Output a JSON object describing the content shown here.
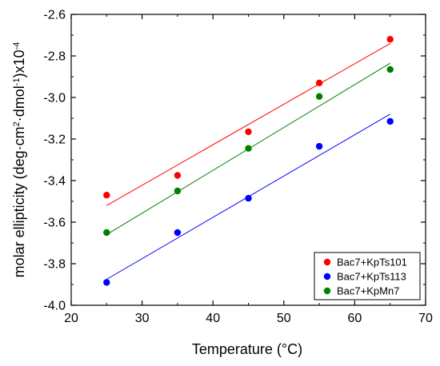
{
  "chart_data": {
    "type": "scatter",
    "xlabel": "Temperature (°C)",
    "ylabel": {
      "main": "molar ellipticity (deg·cm",
      "sup1": "2",
      "mid1": "·dmol",
      "sup2": "-1",
      "mid2": ")x10",
      "sup3": "-4"
    },
    "xlim": [
      20,
      70
    ],
    "ylim": [
      -4.0,
      -2.6
    ],
    "xticks": [
      20,
      30,
      40,
      50,
      60,
      70
    ],
    "yticks": [
      -4.0,
      -3.8,
      -3.6,
      -3.4,
      -3.2,
      -3.0,
      -2.8,
      -2.6
    ],
    "xtick_labels": [
      "20",
      "30",
      "40",
      "50",
      "60",
      "70"
    ],
    "ytick_labels": [
      "-4.0",
      "-3.8",
      "-3.6",
      "-3.4",
      "-3.2",
      "-3.0",
      "-2.8",
      "-2.6"
    ],
    "grid": false,
    "legend_position": "bottom-right",
    "x": [
      25,
      35,
      45,
      55,
      65
    ],
    "series": [
      {
        "name": "Bac7+KpTs101",
        "color": "#ff0000",
        "values": [
          -3.47,
          -3.375,
          -3.165,
          -2.93,
          -2.72
        ],
        "fit": [
          [
            25,
            -3.52
          ],
          [
            65,
            -2.74
          ]
        ]
      },
      {
        "name": "Bac7+KpTs113",
        "color": "#0000ff",
        "values": [
          -3.89,
          -3.65,
          -3.485,
          -3.235,
          -3.115
        ],
        "fit": [
          [
            25,
            -3.875
          ],
          [
            65,
            -3.08
          ]
        ]
      },
      {
        "name": "Bac7+KpMn7",
        "color": "#008000",
        "values": [
          -3.65,
          -3.45,
          -3.245,
          -2.995,
          -2.865
        ],
        "fit": [
          [
            25,
            -3.66
          ],
          [
            65,
            -2.835
          ]
        ]
      }
    ]
  }
}
